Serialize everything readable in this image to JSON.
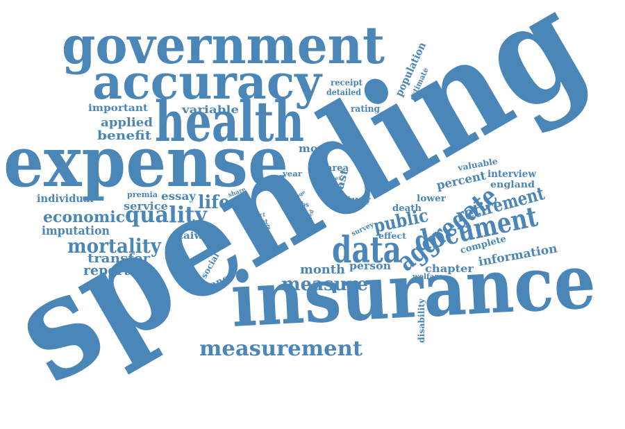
{
  "color": "#4a86b8",
  "words": [
    {
      "text": "spending"
    },
    {
      "text": "government"
    },
    {
      "text": "accuracy"
    },
    {
      "text": "health"
    },
    {
      "text": "expense"
    },
    {
      "text": "insurance"
    },
    {
      "text": "data"
    },
    {
      "text": "document"
    },
    {
      "text": "aggregate"
    },
    {
      "text": "measurement"
    },
    {
      "text": "quality"
    },
    {
      "text": "mortality"
    },
    {
      "text": "retirement"
    },
    {
      "text": "measure"
    },
    {
      "text": "public"
    },
    {
      "text": "economic"
    },
    {
      "text": "information"
    },
    {
      "text": "reported"
    },
    {
      "text": "imputation"
    },
    {
      "text": "transfer"
    },
    {
      "text": "individual"
    },
    {
      "text": "life"
    },
    {
      "text": "essay"
    },
    {
      "text": "service"
    },
    {
      "text": "premia"
    },
    {
      "text": "benefit"
    },
    {
      "text": "applied"
    },
    {
      "text": "important"
    },
    {
      "text": "variable"
    },
    {
      "text": "more"
    },
    {
      "text": "taiwan"
    },
    {
      "text": "month"
    },
    {
      "text": "person"
    },
    {
      "text": "chapter"
    },
    {
      "text": "percent"
    },
    {
      "text": "interview"
    },
    {
      "text": "england"
    },
    {
      "text": "valuable"
    },
    {
      "text": "complete"
    },
    {
      "text": "lower"
    },
    {
      "text": "death"
    },
    {
      "text": "study"
    },
    {
      "text": "area"
    },
    {
      "text": "last"
    },
    {
      "text": "year"
    },
    {
      "text": "older"
    },
    {
      "text": "rating"
    },
    {
      "text": "receipt"
    },
    {
      "text": "detailed"
    },
    {
      "text": "population"
    },
    {
      "text": "estimate"
    },
    {
      "text": "effect"
    },
    {
      "text": "survey"
    },
    {
      "text": "welfare"
    },
    {
      "text": "disability"
    },
    {
      "text": "finance"
    },
    {
      "text": "social"
    },
    {
      "text": "share"
    },
    {
      "text": "fact"
    },
    {
      "text": "affect"
    },
    {
      "text": "group"
    },
    {
      "text": "mcbs"
    },
    {
      "text": "exit"
    },
    {
      "text": "age"
    },
    {
      "text": "care"
    },
    {
      "text": "aged"
    }
  ]
}
